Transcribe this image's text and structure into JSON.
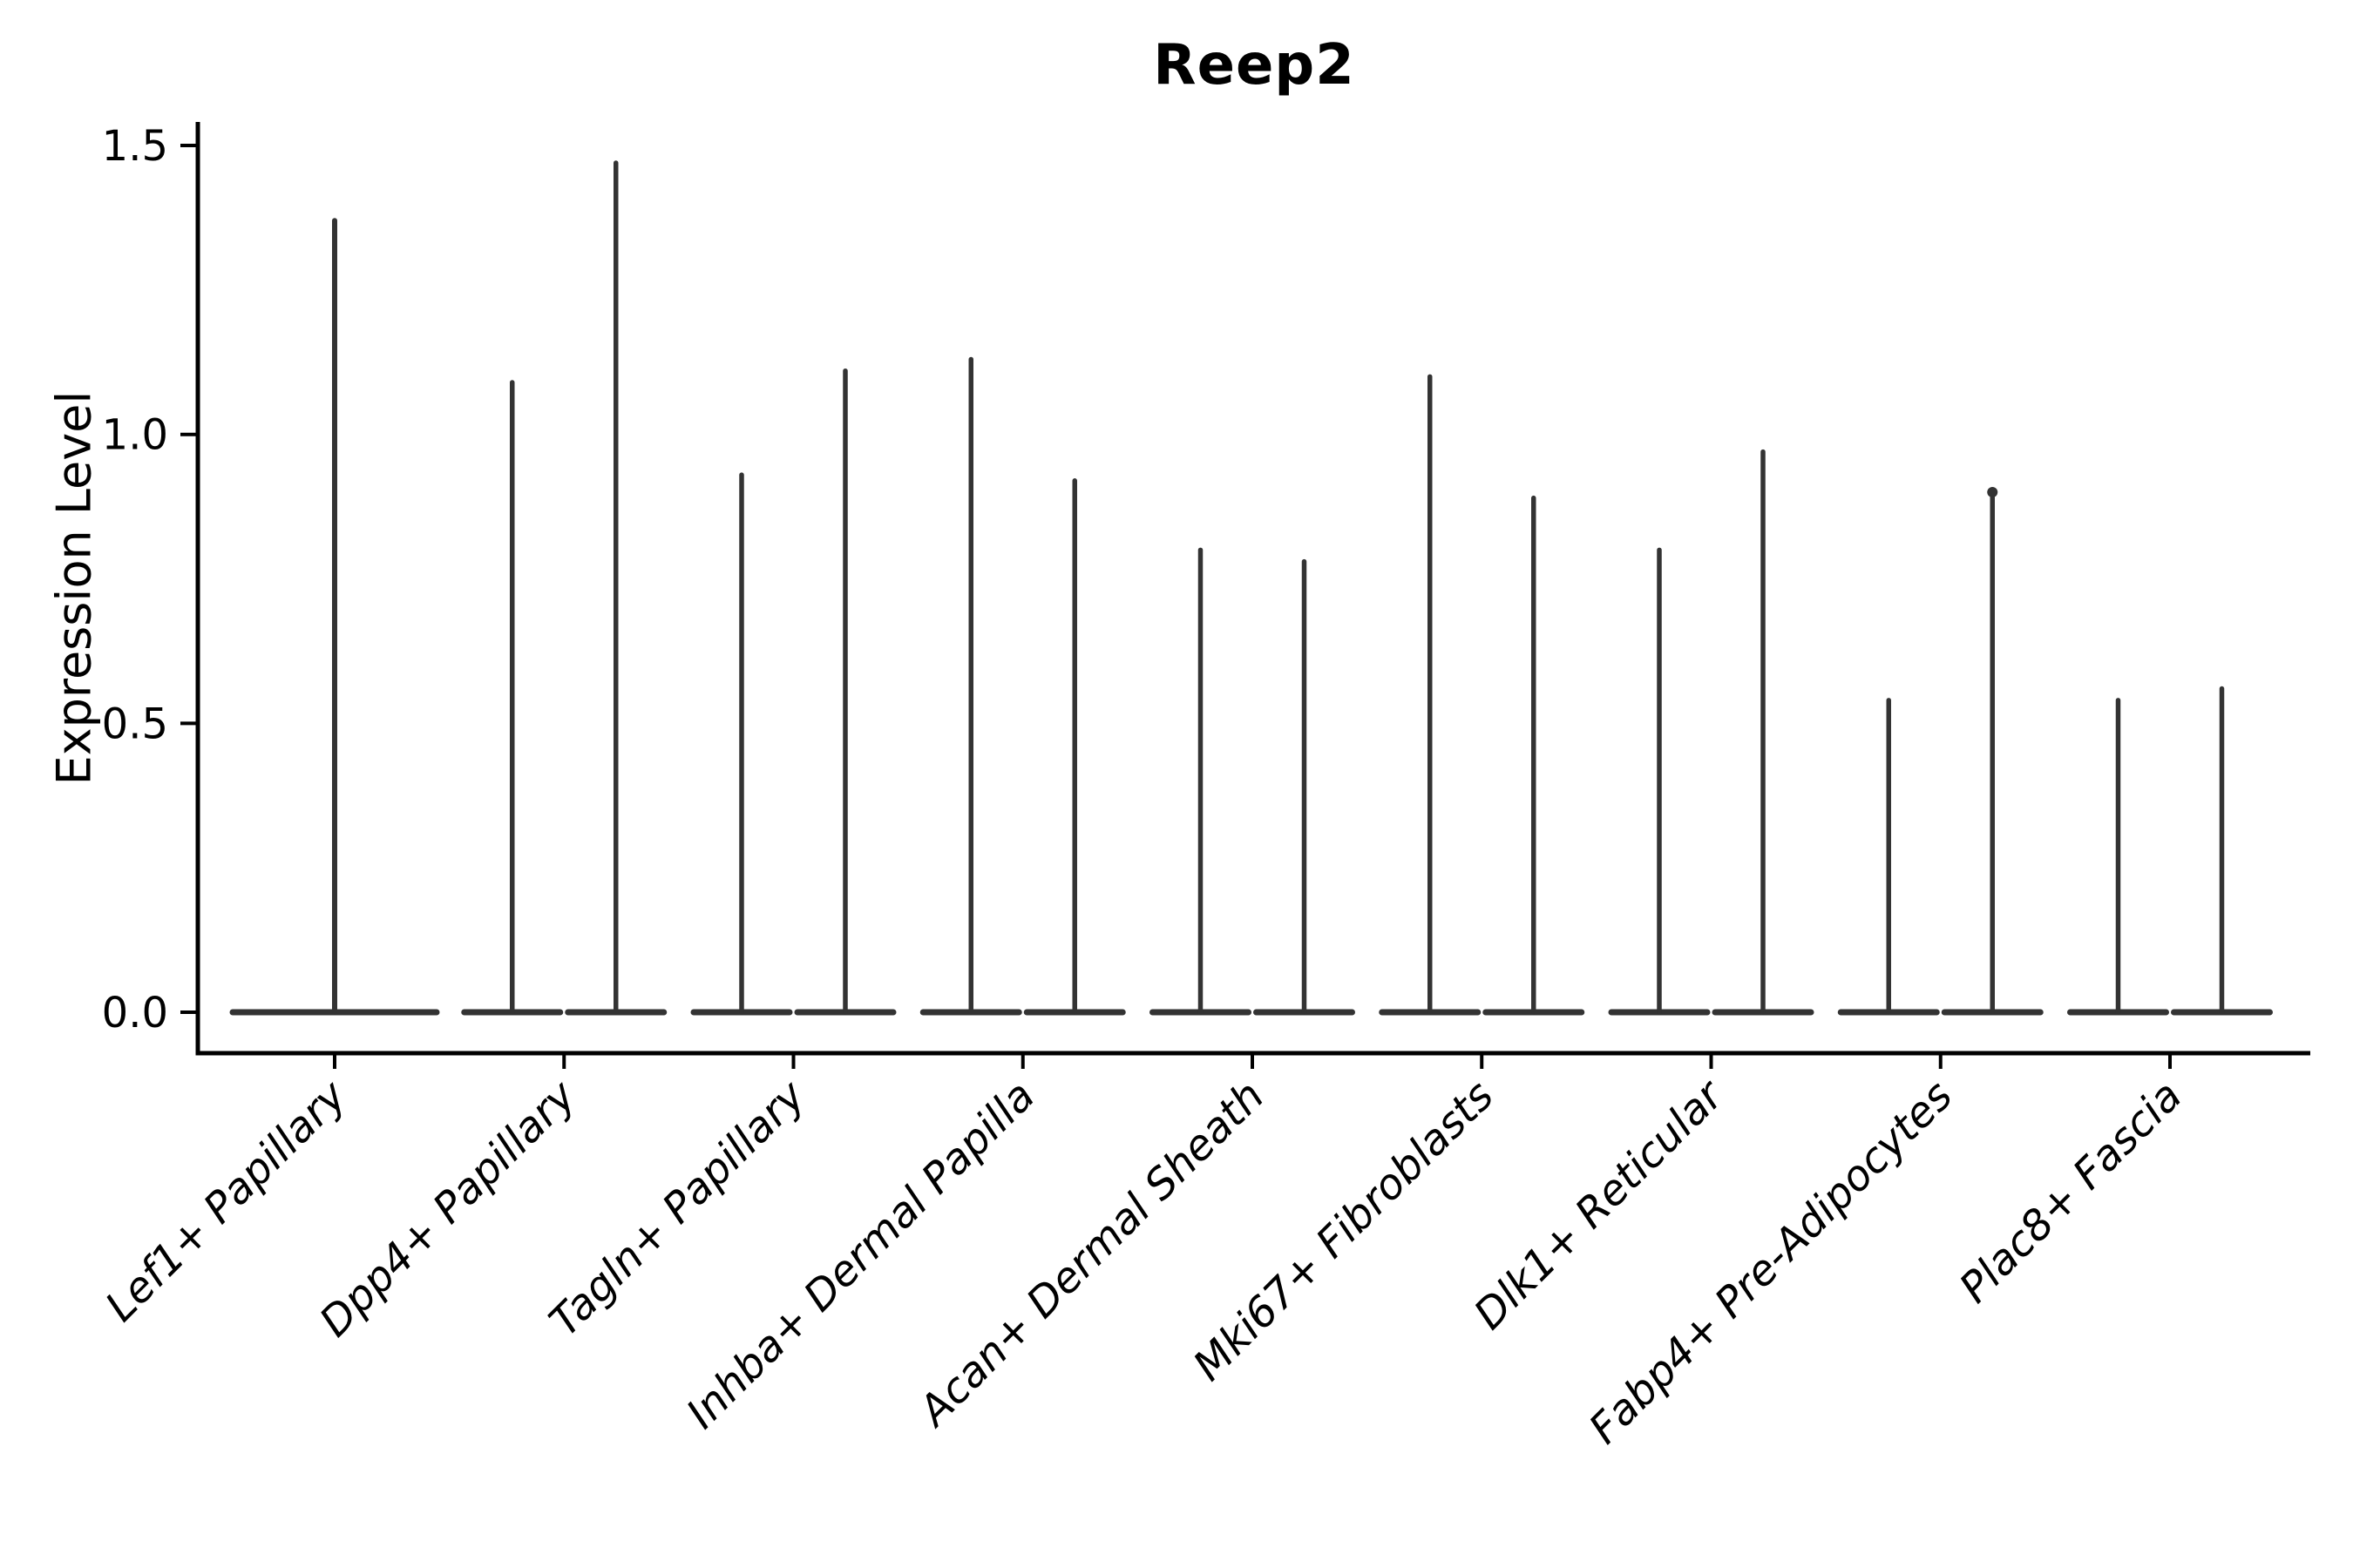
{
  "figure": {
    "title": "Reep2"
  },
  "y_axis": {
    "label": "Expression Level",
    "tick_labels": [
      "0.0",
      "0.5",
      "1.0",
      "1.5"
    ],
    "tick_values": [
      0.0,
      0.5,
      1.0,
      1.5
    ]
  },
  "chart_data": {
    "type": "violin",
    "title": "Reep2",
    "xlabel": "",
    "ylabel": "Expression Level",
    "ylim": [
      0.0,
      1.5
    ],
    "yticks": [
      0.0,
      0.5,
      1.0,
      1.5
    ],
    "grid": false,
    "legend_position": "none",
    "x_tick_label_rotation_deg": 45,
    "categories": [
      "Lef1+ Papillary",
      "Dpp4+ Papillary",
      "Tagln+ Papillary",
      "Inhba+ Dermal Papilla",
      "Acan+ Dermal Sheath",
      "Mki67+ Fibroblasts",
      "Dlk1+ Reticular",
      "Fabp4+ Pre-Adipocytes",
      "Plac8+ Fascia"
    ],
    "violins": [
      {
        "category": "Lef1+ Papillary",
        "group_violins": [
          {
            "min": 0.0,
            "max": 1.37
          }
        ]
      },
      {
        "category": "Dpp4+ Papillary",
        "group_violins": [
          {
            "min": 0.0,
            "max": 1.09
          },
          {
            "min": 0.0,
            "max": 1.47
          }
        ]
      },
      {
        "category": "Tagln+ Papillary",
        "group_violins": [
          {
            "min": 0.0,
            "max": 0.93
          },
          {
            "min": 0.0,
            "max": 1.11
          }
        ]
      },
      {
        "category": "Inhba+ Dermal Papilla",
        "group_violins": [
          {
            "min": 0.0,
            "max": 1.13
          },
          {
            "min": 0.0,
            "max": 0.92
          }
        ]
      },
      {
        "category": "Acan+ Dermal Sheath",
        "group_violins": [
          {
            "min": 0.0,
            "max": 0.8
          },
          {
            "min": 0.0,
            "max": 0.78
          }
        ]
      },
      {
        "category": "Mki67+ Fibroblasts",
        "group_violins": [
          {
            "min": 0.0,
            "max": 1.1
          },
          {
            "min": 0.0,
            "max": 0.89
          }
        ]
      },
      {
        "category": "Dlk1+ Reticular",
        "group_violins": [
          {
            "min": 0.0,
            "max": 0.8
          },
          {
            "min": 0.0,
            "max": 0.97
          }
        ]
      },
      {
        "category": "Fabp4+ Pre-Adipocytes",
        "group_violins": [
          {
            "min": 0.0,
            "max": 0.54
          },
          {
            "min": 0.0,
            "max": 0.9,
            "tip_dot": true
          }
        ]
      },
      {
        "category": "Plac8+ Fascia",
        "group_violins": [
          {
            "min": 0.0,
            "max": 0.54
          },
          {
            "min": 0.0,
            "max": 0.56
          }
        ]
      }
    ],
    "colors": {
      "violin_stroke": "#333333",
      "axis": "#000000",
      "text": "#000000",
      "background": "#ffffff"
    }
  }
}
